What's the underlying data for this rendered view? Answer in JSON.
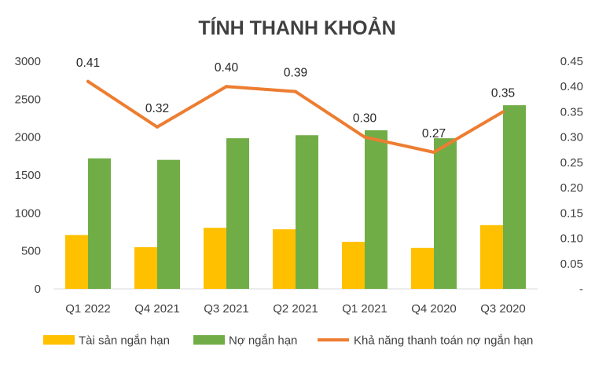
{
  "chart_data": {
    "type": "bar",
    "title": "TÍNH THANH KHOẢN",
    "categories": [
      "Q1 2022",
      "Q4 2021",
      "Q3 2021",
      "Q2 2021",
      "Q1 2021",
      "Q4 2020",
      "Q3 2020"
    ],
    "series": [
      {
        "name": "Tài sản ngắn hạn",
        "type": "bar",
        "axis": "left",
        "color": "#FFC000",
        "values": [
          710,
          550,
          805,
          785,
          620,
          540,
          840
        ]
      },
      {
        "name": "Nợ ngắn hạn",
        "type": "bar",
        "axis": "left",
        "color": "#70AD47",
        "values": [
          1720,
          1700,
          1985,
          2025,
          2090,
          1985,
          2420
        ]
      },
      {
        "name": "Khả năng thanh toán nợ ngắn hạn",
        "type": "line",
        "axis": "right",
        "color": "#ED7D31",
        "values": [
          0.41,
          0.32,
          0.4,
          0.39,
          0.3,
          0.27,
          0.35
        ],
        "data_labels": [
          "0.41",
          "0.32",
          "0.40",
          "0.39",
          "0.30",
          "0.27",
          "0.35"
        ]
      }
    ],
    "y_left": {
      "min": 0,
      "max": 3000,
      "step": 500,
      "tick_labels": [
        "0",
        "500",
        "1000",
        "1500",
        "2000",
        "2500",
        "3000"
      ]
    },
    "y_right": {
      "min": 0,
      "max": 0.45,
      "step": 0.05,
      "tick_labels": [
        "-",
        "0.05",
        "0.10",
        "0.15",
        "0.20",
        "0.25",
        "0.30",
        "0.35",
        "0.40",
        "0.45"
      ]
    },
    "grid": false,
    "legend_position": "bottom"
  }
}
